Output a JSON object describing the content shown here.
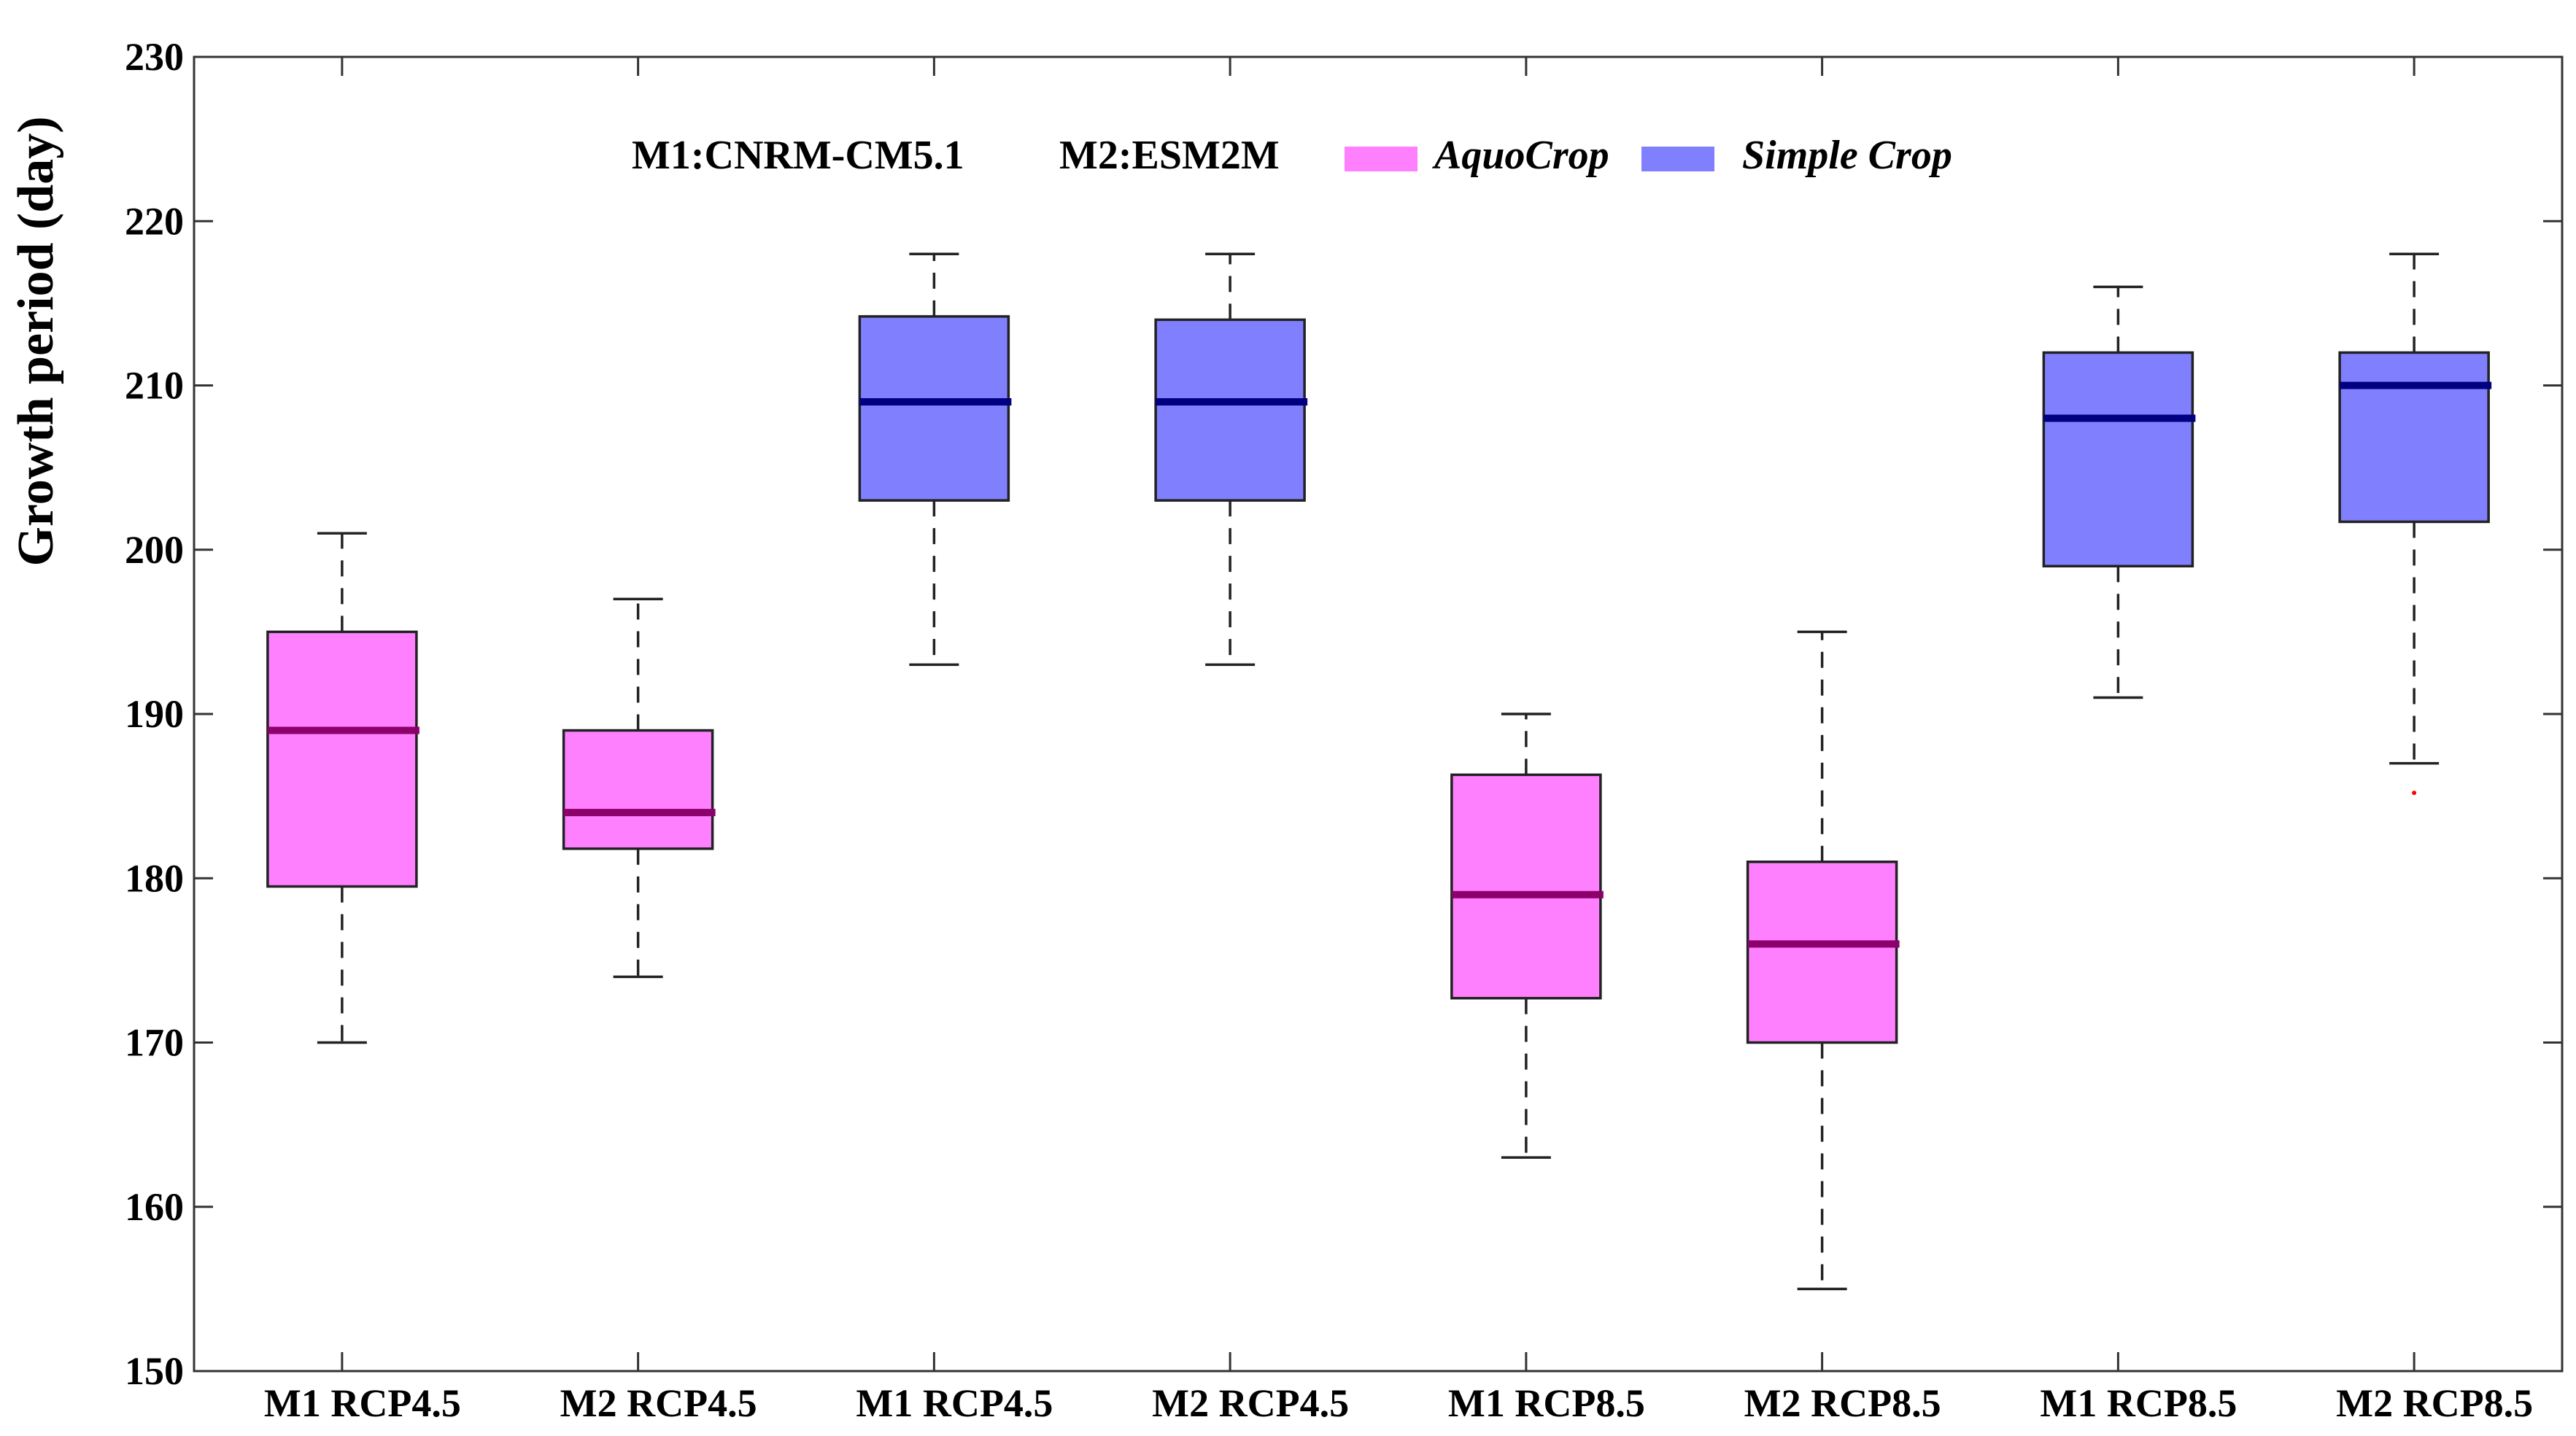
{
  "chart_data": {
    "type": "box",
    "title": "",
    "xlabel": "",
    "ylabel": "Growth period (day)",
    "ylim": [
      150,
      230
    ],
    "yticks": [
      150,
      160,
      170,
      180,
      190,
      200,
      210,
      220,
      230
    ],
    "grid": false,
    "legend_position": "top-center",
    "legend": {
      "model_keys": [
        "M1:CNRM-CM5.1",
        "M2:ESM2M"
      ],
      "entries": [
        {
          "name": "AquoCrop",
          "color": "#ff80ff"
        },
        {
          "name": "Simple Crop",
          "color": "#8080ff"
        }
      ]
    },
    "colors": {
      "AquoCrop": {
        "fill": "#ff80ff",
        "median": "#8b006b"
      },
      "Simple Crop": {
        "fill": "#8080ff",
        "median": "#000080"
      }
    },
    "categories": [
      "M1 RCP4.5",
      "M2 RCP4.5",
      "M1 RCP4.5",
      "M2 RCP4.5",
      "M1 RCP8.5",
      "M2 RCP8.5",
      "M1 RCP8.5",
      "M2 RCP8.5"
    ],
    "boxes": [
      {
        "category": "M1 RCP4.5",
        "series": "AquoCrop",
        "whisker_low": 170,
        "q1": 179.5,
        "median": 189,
        "q3": 195,
        "whisker_high": 201
      },
      {
        "category": "M2 RCP4.5",
        "series": "AquoCrop",
        "whisker_low": 174,
        "q1": 181.8,
        "median": 184,
        "q3": 189,
        "whisker_high": 197
      },
      {
        "category": "M1 RCP4.5",
        "series": "Simple Crop",
        "whisker_low": 193,
        "q1": 203,
        "median": 209,
        "q3": 214.2,
        "whisker_high": 218
      },
      {
        "category": "M2 RCP4.5",
        "series": "Simple Crop",
        "whisker_low": 193,
        "q1": 203,
        "median": 209,
        "q3": 214,
        "whisker_high": 218
      },
      {
        "category": "M1 RCP8.5",
        "series": "AquoCrop",
        "whisker_low": 163,
        "q1": 172.7,
        "median": 179,
        "q3": 186.3,
        "whisker_high": 190
      },
      {
        "category": "M2 RCP8.5",
        "series": "AquoCrop",
        "whisker_low": 155,
        "q1": 170,
        "median": 176,
        "q3": 181,
        "whisker_high": 195
      },
      {
        "category": "M1 RCP8.5",
        "series": "Simple Crop",
        "whisker_low": 191,
        "q1": 199,
        "median": 208,
        "q3": 212,
        "whisker_high": 216
      },
      {
        "category": "M2 RCP8.5",
        "series": "Simple Crop",
        "whisker_low": 187,
        "q1": 201.7,
        "median": 210,
        "q3": 212,
        "whisker_high": 218,
        "outliers": [
          185.2
        ]
      }
    ]
  }
}
